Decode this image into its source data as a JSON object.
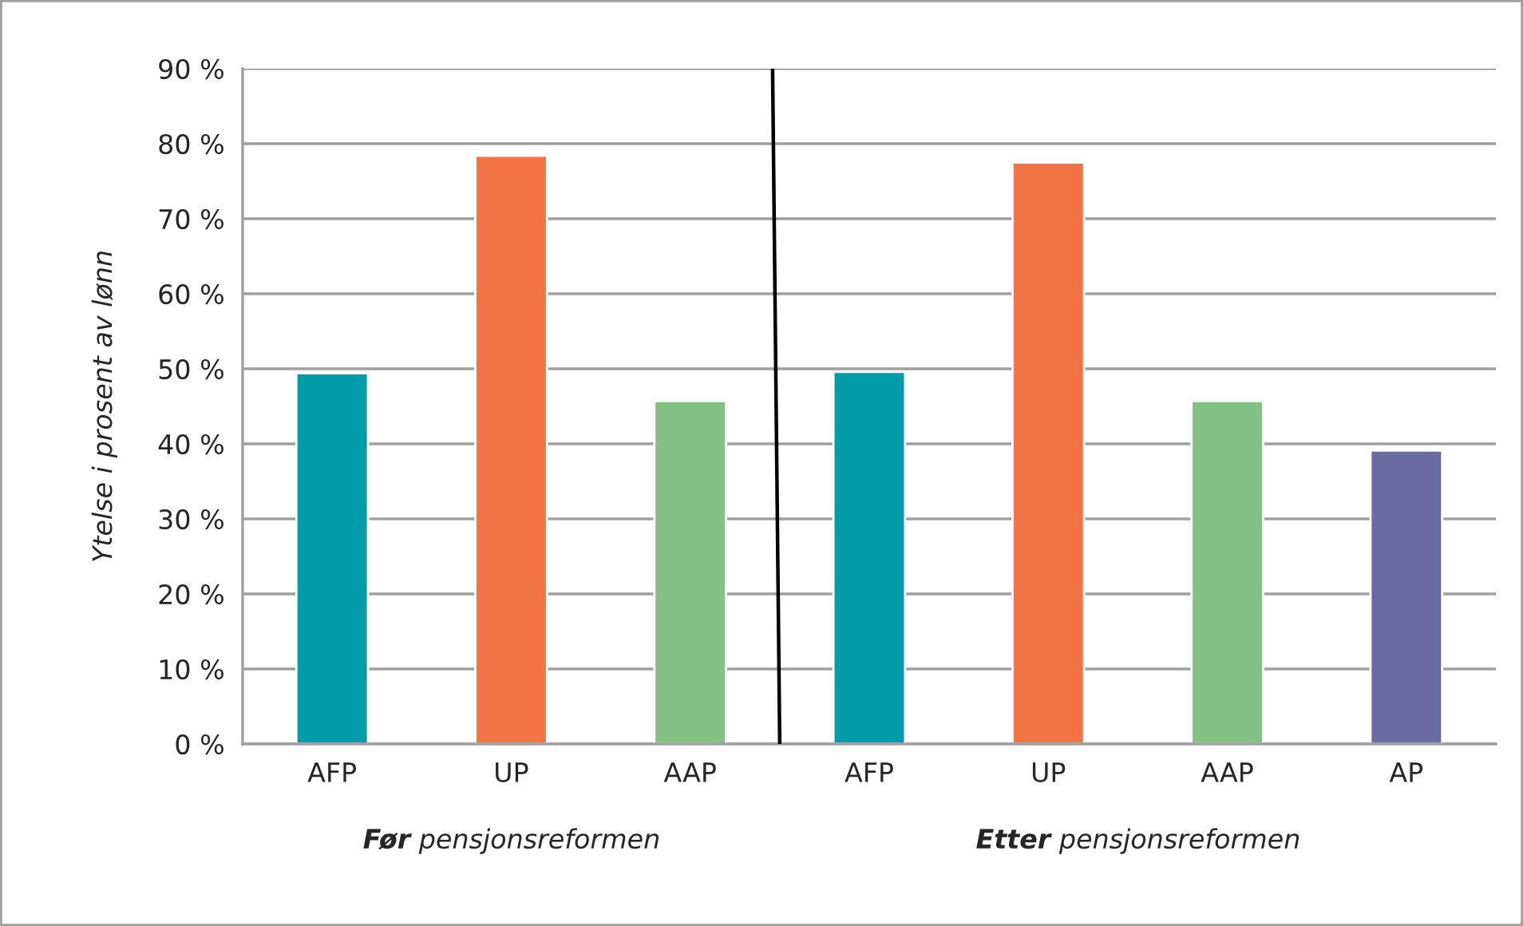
{
  "chart_data": {
    "type": "bar",
    "ylabel": "Ytelse i prosent av lønn",
    "categories": [
      "AFP",
      "UP",
      "AAP",
      "AFP",
      "UP",
      "AAP",
      "AP"
    ],
    "values": [
      49.4,
      78.4,
      45.7,
      49.6,
      77.5,
      45.7,
      39.1
    ],
    "colors": [
      "#009ca9",
      "#f07444",
      "#84c185",
      "#009ca9",
      "#f07444",
      "#84c185",
      "#6b6ba2"
    ],
    "ylim": [
      0,
      90
    ],
    "yticks": [
      {
        "value": 0,
        "label": "0 %"
      },
      {
        "value": 10,
        "label": "10 %"
      },
      {
        "value": 20,
        "label": "20 %"
      },
      {
        "value": 30,
        "label": "30 %"
      },
      {
        "value": 40,
        "label": "40 %"
      },
      {
        "value": 50,
        "label": "50 %"
      },
      {
        "value": 60,
        "label": "60 %"
      },
      {
        "value": 70,
        "label": "70 %"
      },
      {
        "value": 80,
        "label": "80 %"
      },
      {
        "value": 90,
        "label": "90 %"
      }
    ],
    "grid": "y",
    "annotations": [
      "Før pensjonsreformen",
      "Etter pensjonsreformen"
    ]
  }
}
